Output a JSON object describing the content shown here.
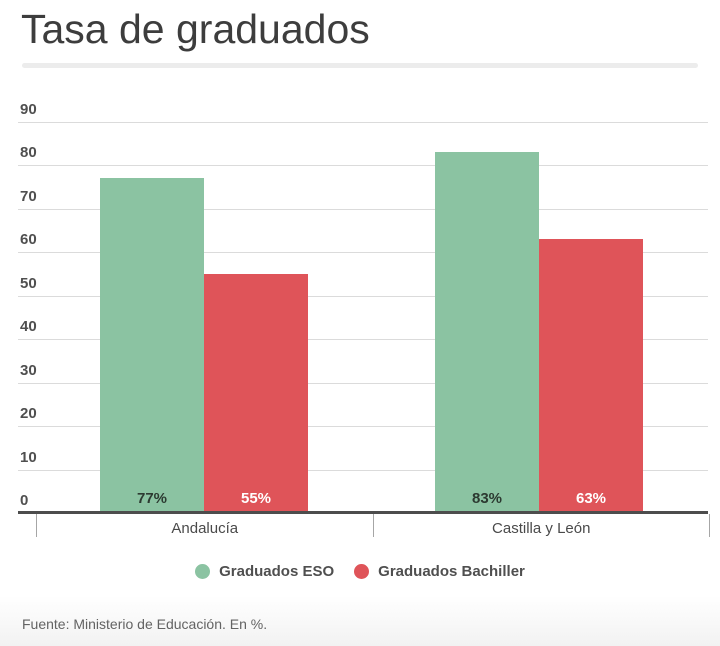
{
  "header": {
    "title": "Tasa de graduados"
  },
  "chart_data": {
    "type": "bar",
    "title": "Tasa de graduados",
    "categories": [
      "Andalucía",
      "Castilla y León"
    ],
    "series": [
      {
        "name": "Graduados ESO",
        "color": "#8bc3a2",
        "label_color": "#2c3a31",
        "values": [
          77,
          83
        ]
      },
      {
        "name": "Graduados Bachiller",
        "color": "#df5459",
        "label_color": "#ffffff",
        "values": [
          55,
          63
        ]
      }
    ],
    "value_suffix": "%",
    "ylim": [
      0,
      90
    ],
    "yticks": [
      0,
      10,
      20,
      30,
      40,
      50,
      60,
      70,
      80,
      90
    ],
    "grid": true,
    "legend_position": "bottom",
    "xlabel": "",
    "ylabel": ""
  },
  "legend": {
    "items": [
      {
        "label": "Graduados ESO",
        "color": "#8bc3a2"
      },
      {
        "label": "Graduados Bachiller",
        "color": "#df5459"
      }
    ]
  },
  "footer": {
    "source": "Fuente: Ministerio de Educación. En %."
  }
}
